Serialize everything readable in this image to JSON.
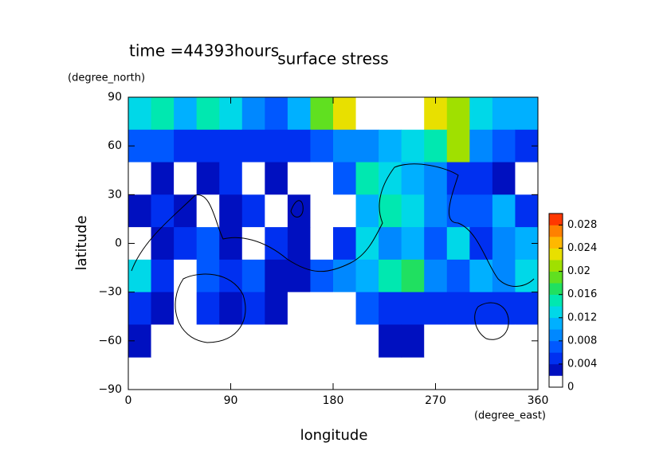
{
  "chart_data": {
    "type": "contour",
    "title": "surface stress",
    "subtitle": "time =44393hours",
    "x_label": "longitude",
    "x_unit": "(degree_east)",
    "y_label": "latitude",
    "y_unit": "(degree_north)",
    "x": [
      0,
      20,
      40,
      60,
      80,
      100,
      120,
      140,
      160,
      180,
      200,
      220,
      240,
      260,
      280,
      300,
      320,
      340,
      360
    ],
    "y": [
      90,
      70,
      50,
      30,
      10,
      -10,
      -30,
      -50,
      -70,
      -90
    ],
    "z": [
      [
        0.012,
        0.014,
        0.01,
        0.014,
        0.012,
        0.008,
        0.006,
        0.01,
        0.018,
        0.022,
        0.03,
        0.03,
        0.03,
        0.022,
        0.02,
        0.012,
        0.01,
        0.01
      ],
      [
        0.006,
        0.006,
        0.004,
        0.005,
        0.005,
        0.004,
        0.004,
        0.005,
        0.006,
        0.008,
        0.008,
        0.01,
        0.012,
        0.014,
        0.02,
        0.008,
        0.006,
        0.005
      ],
      [
        0,
        0.003,
        0,
        0.003,
        0.004,
        0,
        0.003,
        0,
        0,
        0.006,
        0.014,
        0.012,
        0.01,
        0.008,
        0.004,
        0.004,
        0.002,
        0
      ],
      [
        0.003,
        0.004,
        0.003,
        0,
        0.002,
        0.005,
        0,
        0.003,
        0,
        0,
        0.01,
        0.014,
        0.012,
        0.008,
        0.006,
        0.006,
        0.01,
        0.004
      ],
      [
        0,
        0.002,
        0.004,
        0.006,
        0.003,
        0,
        0.004,
        0.002,
        0,
        0.004,
        0.012,
        0.008,
        0.01,
        0.006,
        0.012,
        0.004,
        0.008,
        0.01
      ],
      [
        0.012,
        0.004,
        0,
        0.006,
        0.004,
        0.006,
        0.002,
        0.003,
        0.006,
        0.008,
        0.01,
        0.014,
        0.016,
        0.008,
        0.006,
        0.01,
        0.008,
        0.012
      ],
      [
        0.004,
        0.002,
        0,
        0.005,
        0.002,
        0.004,
        0.003,
        0,
        0,
        0,
        0.006,
        0.004,
        0.004,
        0.005,
        0.004,
        0.004,
        0.004,
        0.004
      ],
      [
        0.002,
        0.001,
        0,
        0,
        0,
        0,
        0,
        0,
        0,
        0,
        0,
        0.002,
        0.002,
        0,
        0,
        0,
        0.001,
        0
      ],
      [
        null,
        null,
        null,
        null,
        null,
        null,
        null,
        null,
        null,
        null,
        null,
        null,
        null,
        null,
        null,
        null,
        null,
        null
      ]
    ],
    "xlim": [
      0,
      360
    ],
    "ylim": [
      -90,
      90
    ],
    "xticks": [
      0,
      90,
      180,
      270,
      360
    ],
    "yticks": [
      {
        "value": -90,
        "label": "−90"
      },
      {
        "value": -60,
        "label": "−60"
      },
      {
        "value": -30,
        "label": "−30"
      },
      0,
      30,
      60,
      90
    ],
    "colorbar_lim": [
      0,
      0.03
    ],
    "colorbar_ticks": [
      0,
      0.004,
      0.008,
      0.012,
      0.016,
      0.02,
      0.024,
      0.028
    ],
    "level_step": 0.002,
    "colors": [
      "#ffffff",
      "#0010c0",
      "#0030f0",
      "#0058ff",
      "#0088ff",
      "#00b0ff",
      "#00d8e8",
      "#00e8b0",
      "#20e060",
      "#60e020",
      "#a0e000",
      "#e8e000",
      "#ffb800",
      "#ff8000",
      "#ff3800"
    ],
    "over_color": "#ffffff"
  }
}
